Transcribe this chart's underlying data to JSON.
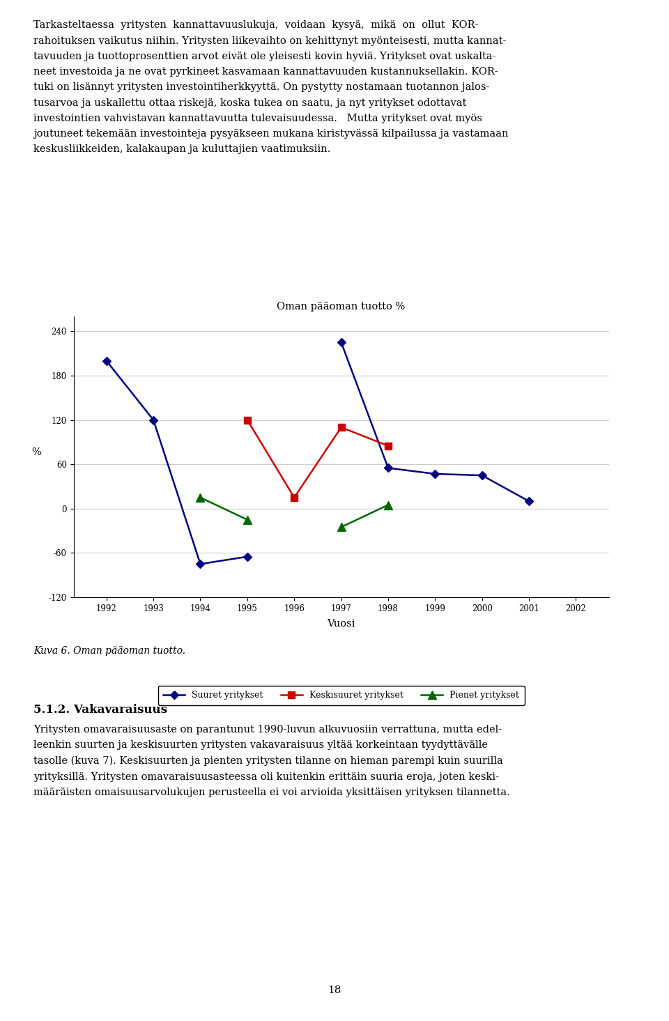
{
  "title_text": "Oman pääoman tuotto %",
  "xlabel": "Vuosi",
  "ylabel": "%",
  "years": [
    1992,
    1993,
    1994,
    1995,
    1996,
    1997,
    1998,
    1999,
    2000,
    2001,
    2002
  ],
  "suuret": [
    200,
    120,
    -75,
    -65,
    null,
    225,
    55,
    47,
    45,
    10,
    null
  ],
  "keskisuuret": [
    null,
    null,
    null,
    120,
    15,
    110,
    85,
    null,
    null,
    null,
    null
  ],
  "pienet": [
    null,
    null,
    15,
    -15,
    null,
    -25,
    5,
    null,
    null,
    null,
    null
  ],
  "suuret_color": "#000080",
  "keskisuuret_color": "#cc0000",
  "pienet_color": "#006600",
  "ylim": [
    -120,
    260
  ],
  "yticks": [
    -120,
    -60,
    0,
    60,
    120,
    180,
    240
  ],
  "bg_color": "#ffffff",
  "grid_color": "#cccccc",
  "para1_lines": [
    "Tarkasteltaessa  yritysten  kannattavuuslukuja,  voidaan  kysyä,  mikä  on  ollut  KOR-",
    "rahoituksen vaikutus niihin. Yritysten liikevaihto on kehittynyt myönteisesti, mutta kannat-",
    "tavuuden ja tuottoprosenttien arvot eivät ole yleisesti kovin hyviä. Yritykset ovat uskalta-",
    "neet investoida ja ne ovat pyrkineet kasvamaan kannattavuuden kustannuksellakin. KOR-",
    "tuki on lisännyt yritysten investointiherkkyyttä. On pystytty nostamaan tuotannon jalos-",
    "tusarvoa ja uskallettu ottaa riskejä, koska tukea on saatu, ja nyt yritykset odottavat",
    "investointien vahvistavan kannattavuutta tulevaisuudessa.   Mutta yritykset ovat myös",
    "joutuneet tekemään investointeja pysyäkseen mukana kiristyvässä kilpailussa ja vastamaan",
    "keskusliikkeiden, kalakaupan ja kuluttajien vaatimuksiin."
  ],
  "caption": "Kuva 6. Oman pääoman tuotto.",
  "section_title": "5.1.2. Vakavaraisuus",
  "para2_lines": [
    "Yritysten omavaraisuusaste on parantunut 1990-luvun alkuvuosiin verrattuna, mutta edel-",
    "leenkin suurten ja keskisuurten yritysten vakavaraisuus yltää korkeintaan tyydyttävälle",
    "tasolle (kuva 7). Keskisuurten ja pienten yritysten tilanne on hieman parempi kuin suurilla",
    "yrityksillä. Yritysten omavaraisuusasteessa oli kuitenkin erittäin suuria eroja, joten keski-",
    "määräisten omaisuusarvolukujen perusteella ei voi arvioida yksittäisen yrityksen tilannetta."
  ],
  "page_number": "18",
  "legend_suuret": "Suuret yritykset",
  "legend_keskisuuret": "Keskisuuret yritykset",
  "legend_pienet": "Pienet yritykset"
}
